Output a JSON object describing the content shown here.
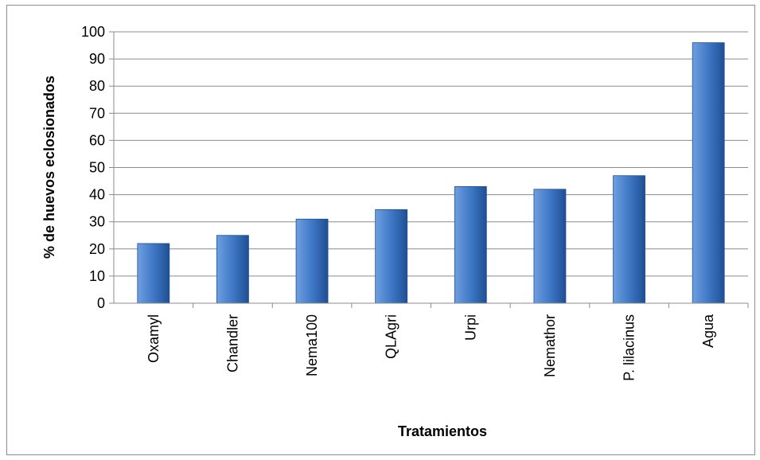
{
  "chart_data": {
    "type": "bar",
    "title": "",
    "xlabel": "Tratamientos",
    "ylabel": "% de huevos eclosionados",
    "categories": [
      "Oxamyl",
      "Chandler",
      "Nema100",
      "QLAgri",
      "Urpi",
      "Nemathor",
      "P. lilacinus",
      "Agua"
    ],
    "values": [
      22,
      25,
      31,
      34.5,
      43,
      42,
      47,
      96
    ],
    "ylim": [
      0,
      100
    ],
    "yticks": [
      "0",
      "10",
      "20",
      "30",
      "40",
      "50",
      "60",
      "70",
      "80",
      "90",
      "100"
    ],
    "grid": true,
    "legend": "none",
    "colors": {
      "bar_light": "#6e9fe0",
      "bar_mid": "#3f78c6",
      "bar_dark": "#1f4f94",
      "gridline": "#8c8c8c",
      "axis": "#8c8c8c"
    }
  }
}
